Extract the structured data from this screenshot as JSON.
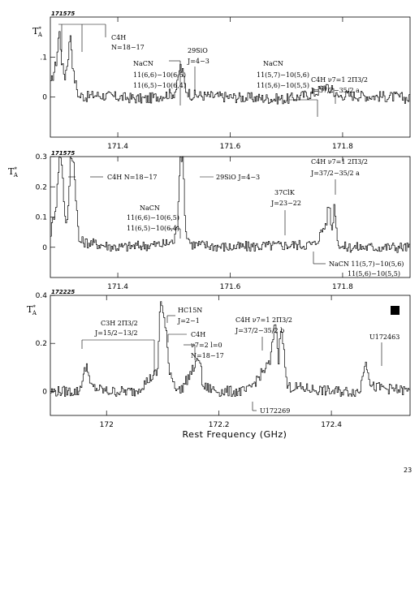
{
  "page_number": "23",
  "chart_data": [
    {
      "type": "line",
      "step": true,
      "panel_id": "171575",
      "ylabel": "T*A",
      "xlim": [
        171.28,
        171.92
      ],
      "ylim": [
        -0.1,
        0.2
      ],
      "yticks": [
        0,
        0.1
      ],
      "ytick_labels": [
        "0",
        ".1"
      ],
      "xticks": [
        171.4,
        171.6,
        171.8
      ],
      "xtick_labels": [
        "171.4",
        "171.6",
        "171.8"
      ],
      "series": [
        {
          "x": [
            171.28,
            171.285,
            171.29,
            171.295,
            171.3,
            171.305,
            171.31,
            171.315,
            171.32,
            171.325,
            171.33,
            171.335,
            171.34,
            171.36,
            171.4,
            171.45,
            171.48,
            171.5,
            171.505,
            171.51,
            171.515,
            171.52,
            171.53,
            171.6,
            171.7,
            171.75,
            171.77,
            171.775,
            171.78,
            171.785,
            171.79,
            171.8,
            171.9,
            171.92
          ],
          "y": [
            0.03,
            0.06,
            0.09,
            0.17,
            0.08,
            0.05,
            0.09,
            0.16,
            0.06,
            0.03,
            0.0,
            0.005,
            0.0,
            0.005,
            0.0,
            -0.005,
            0.005,
            0.01,
            0.03,
            0.08,
            0.06,
            0.02,
            0.005,
            0.0,
            -0.005,
            0.01,
            0.03,
            0.01,
            0.03,
            0.01,
            0.0,
            0.005,
            0.0,
            -0.005
          ]
        }
      ],
      "annotations": [
        {
          "text": "C4H",
          "x": 171.3
        },
        {
          "text": "N=18−17",
          "x": 171.3
        },
        {
          "text": "NaCN",
          "x": 171.485
        },
        {
          "text": "11(6,6)−10(6,5)",
          "x": 171.485
        },
        {
          "text": "11(6,5)−10(6,4)",
          "x": 171.485
        },
        {
          "text": "29SiO",
          "x": 171.512
        },
        {
          "text": "J=4−3",
          "x": 171.512
        },
        {
          "text": "NaCN",
          "x": 171.75
        },
        {
          "text": "11(5,7)−10(5,6)",
          "x": 171.75
        },
        {
          "text": "11(5,6)−10(5,5)",
          "x": 171.75
        },
        {
          "text": "C4H ν7=1 2Π3/2",
          "x": 171.78
        },
        {
          "text": "J=37/2−35/2 a",
          "x": 171.78
        }
      ]
    },
    {
      "type": "line",
      "step": true,
      "panel_id": "171575",
      "ylabel": "T*A",
      "xlim": [
        171.28,
        171.92
      ],
      "ylim": [
        -0.1,
        0.3
      ],
      "yticks": [
        0,
        0.1,
        0.2,
        0.3
      ],
      "ytick_labels": [
        "0",
        "0.1",
        "0.2",
        "0.3"
      ],
      "xticks": [
        171.4,
        171.6,
        171.8
      ],
      "xtick_labels": [
        "171.4",
        "171.6",
        "171.8"
      ],
      "series": [
        {
          "x": [
            171.28,
            171.29,
            171.295,
            171.3,
            171.305,
            171.31,
            171.315,
            171.32,
            171.33,
            171.4,
            171.48,
            171.5,
            171.505,
            171.51,
            171.515,
            171.52,
            171.53,
            171.6,
            171.75,
            171.77,
            171.775,
            171.78,
            171.785,
            171.79,
            171.8,
            171.92
          ],
          "y": [
            0.05,
            0.15,
            0.3,
            0.28,
            0.1,
            0.08,
            0.3,
            0.3,
            0.02,
            0.0,
            0.01,
            0.02,
            0.08,
            0.3,
            0.3,
            0.05,
            0.01,
            0.0,
            0.01,
            0.08,
            0.15,
            0.05,
            0.15,
            0.02,
            0.0,
            0.0
          ]
        }
      ],
      "annotations": [
        {
          "text": "C4H N=18−17",
          "x": 171.3
        },
        {
          "text": "NaCN",
          "x": 171.485
        },
        {
          "text": "11(6,6)−10(6,5)",
          "x": 171.485
        },
        {
          "text": "11(6,5)−10(6,4)",
          "x": 171.485
        },
        {
          "text": "29SiO J=4−3",
          "x": 171.512
        },
        {
          "text": "37ClK",
          "x": 171.66
        },
        {
          "text": "J=23−22",
          "x": 171.66
        },
        {
          "text": "C4H ν7=1 2Π3/2",
          "x": 171.78
        },
        {
          "text": "J=37/2−35/2 a",
          "x": 171.78
        },
        {
          "text": "NaCN 11(5,7)−10(5,6)",
          "x": 171.76
        },
        {
          "text": "11(5,6)−10(5,5)",
          "x": 171.76
        }
      ]
    },
    {
      "type": "line",
      "step": true,
      "panel_id": "172225",
      "ylabel": "T*A",
      "xlabel": "Rest Frequency (GHz)",
      "xlim": [
        171.9,
        172.54
      ],
      "ylim": [
        -0.1,
        0.4
      ],
      "yticks": [
        0,
        0.2,
        0.4
      ],
      "ytick_labels": [
        "0",
        "0.2",
        "0.4"
      ],
      "xticks": [
        172.0,
        172.2,
        172.4
      ],
      "xtick_labels": [
        "172",
        "172.2",
        "172.4"
      ],
      "series": [
        {
          "x": [
            171.9,
            171.95,
            171.96,
            171.965,
            171.97,
            172.0,
            172.05,
            172.09,
            172.095,
            172.1,
            172.105,
            172.11,
            172.12,
            172.13,
            172.16,
            172.165,
            172.17,
            172.2,
            172.25,
            172.29,
            172.3,
            172.305,
            172.31,
            172.32,
            172.4,
            172.45,
            172.46,
            172.47,
            172.54
          ],
          "y": [
            0.0,
            0.0,
            0.08,
            0.12,
            0.02,
            0.0,
            0.0,
            0.08,
            0.4,
            0.32,
            0.25,
            0.1,
            0.03,
            0.0,
            0.12,
            0.15,
            0.02,
            0.0,
            0.0,
            0.12,
            0.3,
            0.12,
            0.3,
            0.02,
            0.0,
            0.0,
            0.14,
            0.02,
            0.0
          ]
        }
      ],
      "annotations": [
        {
          "text": "C3H 2Π3/2",
          "x": 172.03
        },
        {
          "text": "J=15/2−13/2",
          "x": 172.03
        },
        {
          "text": "HC15N",
          "x": 172.105
        },
        {
          "text": "J=2−1",
          "x": 172.105
        },
        {
          "text": "C4H",
          "x": 172.13
        },
        {
          "text": "ν7=2 l=0",
          "x": 172.13
        },
        {
          "text": "N=18−17",
          "x": 172.13
        },
        {
          "text": "C4H ν7=1 2Π3/2",
          "x": 172.3
        },
        {
          "text": "J=37/2−35/2 b",
          "x": 172.3
        },
        {
          "text": "U172463",
          "x": 172.463
        },
        {
          "text": "U172269",
          "x": 172.269
        }
      ]
    }
  ]
}
